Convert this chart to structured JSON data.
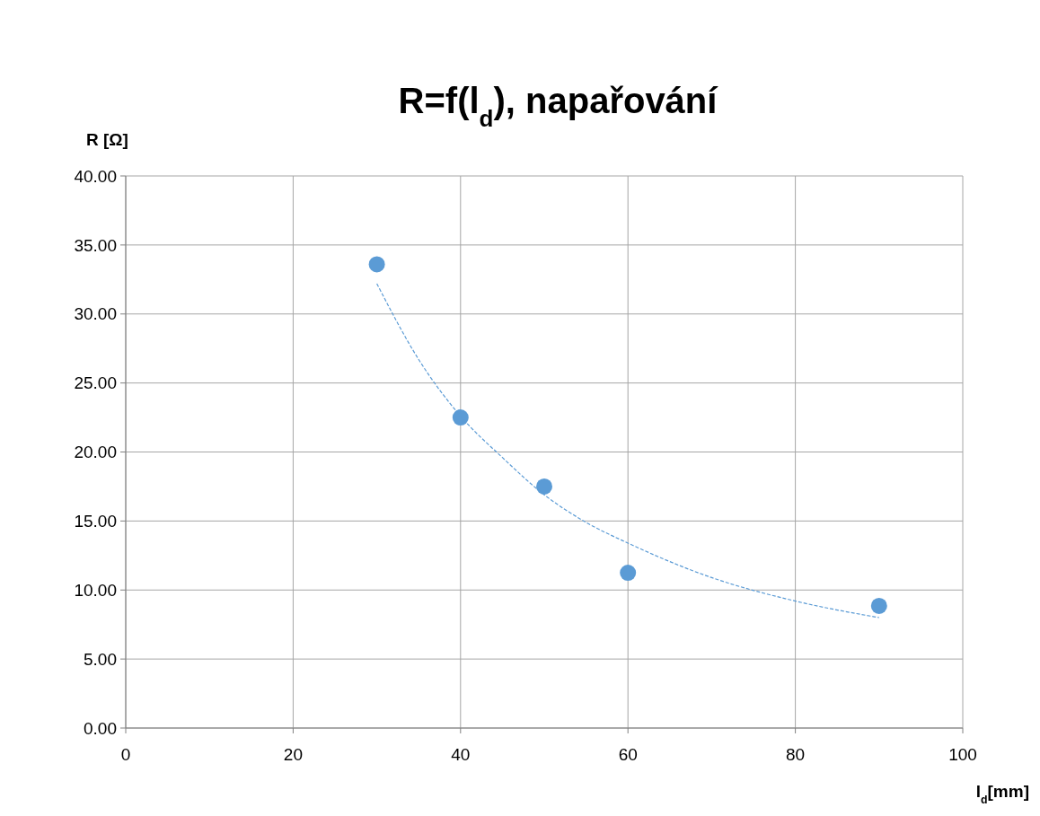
{
  "chart_data": {
    "type": "scatter",
    "title": "R=f(l$_{d}$), napařování",
    "xlabel": "l$_{d}$[mm]",
    "ylabel": "R [Ω]",
    "xlim": [
      0,
      100
    ],
    "xticks": [
      0,
      20,
      40,
      60,
      80,
      100
    ],
    "ylim": [
      0,
      40
    ],
    "yticks": [
      {
        "value": 0,
        "label": "0.00"
      },
      {
        "value": 5,
        "label": "5.00"
      },
      {
        "value": 10,
        "label": "10.00"
      },
      {
        "value": 15,
        "label": "15.00"
      },
      {
        "value": 20,
        "label": "20.00"
      },
      {
        "value": 25,
        "label": "25.00"
      },
      {
        "value": 30,
        "label": "30.00"
      },
      {
        "value": 35,
        "label": "35.00"
      },
      {
        "value": 40,
        "label": "40.00"
      }
    ],
    "grid": true,
    "series": [
      {
        "color": "#5b9bd5",
        "marker": "circle",
        "x": [
          30,
          40,
          50,
          60,
          90
        ],
        "values": [
          33.6,
          22.5,
          17.5,
          11.25,
          8.85
        ]
      },
      {
        "type": "line",
        "color": "#5b9bd5",
        "marker": "none",
        "line_style": "dashed",
        "x": [
          30,
          35,
          40,
          45,
          50,
          55,
          60,
          70,
          80,
          90
        ],
        "values": [
          32.2,
          26.7,
          22.6,
          19.6,
          16.9,
          14.9,
          13.4,
          10.9,
          9.2,
          8.0
        ]
      }
    ]
  }
}
